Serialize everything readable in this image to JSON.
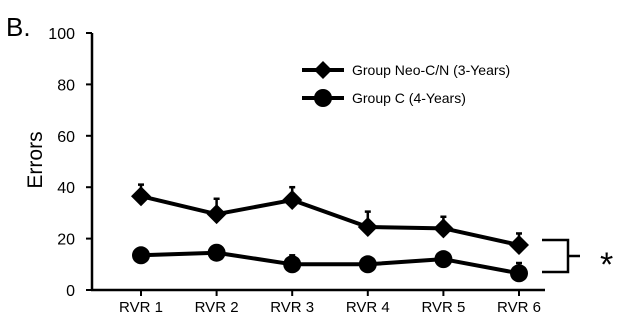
{
  "panel_label": "B.",
  "significance_marker": "*",
  "chart_data": {
    "type": "line",
    "title": "",
    "xlabel": "",
    "ylabel": "Errors",
    "categories": [
      "RVR 1",
      "RVR 2",
      "RVR 3",
      "RVR 4",
      "RVR 5",
      "RVR 6"
    ],
    "ylim": [
      0,
      100
    ],
    "yticks": [
      0,
      20,
      40,
      60,
      80,
      100
    ],
    "grid": false,
    "legend_position": "top-right",
    "series": [
      {
        "name": "Group Neo-C/N (3-Years)",
        "marker": "diamond",
        "values": [
          36.5,
          29.5,
          35,
          24.5,
          24,
          17.5
        ],
        "error": [
          4.5,
          6,
          5,
          6,
          4.5,
          4.5
        ]
      },
      {
        "name": "Group C (4-Years)",
        "marker": "circle",
        "values": [
          13.5,
          14.5,
          10,
          10,
          12,
          6.5
        ],
        "error": [
          0,
          0,
          3.5,
          0,
          0,
          4
        ]
      }
    ],
    "line_color": "#000000"
  }
}
